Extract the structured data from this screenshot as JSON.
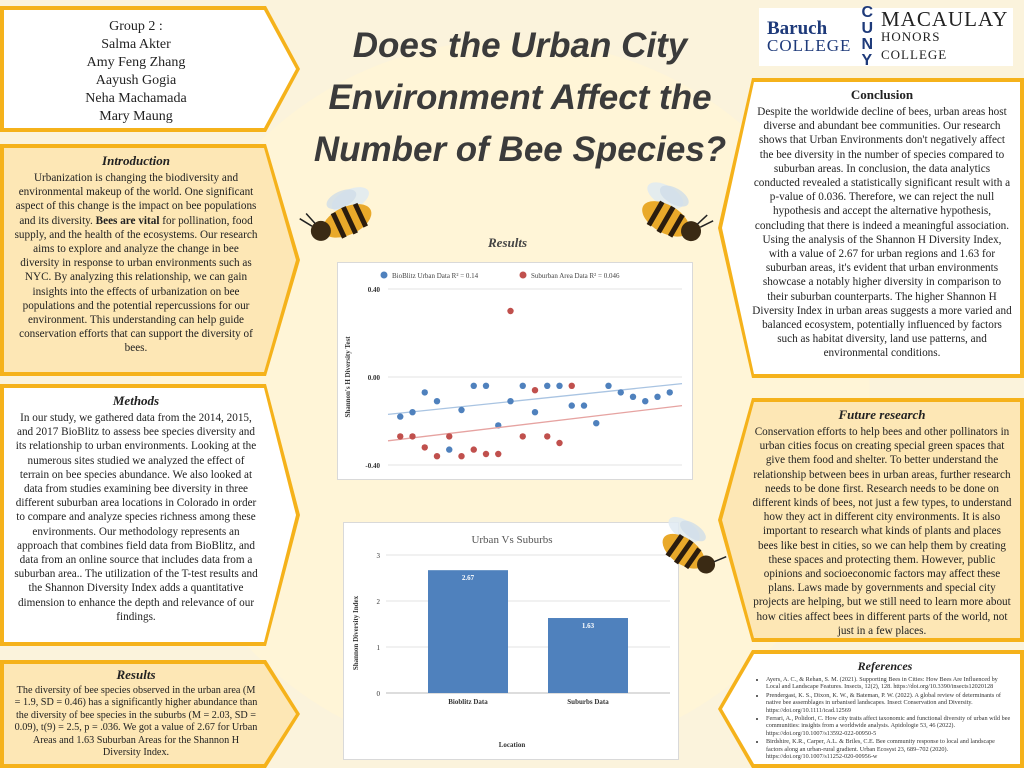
{
  "title": "Does the Urban City Environment Affect the Number of Bee Species?",
  "group": {
    "heading": "Group 2 :",
    "members": [
      "Salma Akter",
      "Amy Feng Zhang",
      "Aayush Gogia",
      "Neha Machamada",
      "Mary Maung"
    ]
  },
  "logo": {
    "baruch_line1": "Baruch",
    "baruch_line2": "COLLEGE",
    "cuny": "CUNY",
    "macaulay_line1": "MACAULAY",
    "macaulay_line2": "HONORS COLLEGE"
  },
  "introduction": {
    "heading": "Introduction",
    "text_before": "Urbanization is changing the biodiversity and environmental makeup of the world. One significant aspect of this change is the impact on bee populations and its diversity. ",
    "text_bold": "Bees are vital",
    "text_after": " for pollination, food supply,  and the health of the ecosystems. Our research aims to explore and analyze the change in bee diversity in response to urban environments such as NYC. By analyzing this relationship, we can gain insights into the effects of urbanization on bee populations and the potential repercussions for our environment. This understanding can help guide conservation efforts that can support the diversity of bees."
  },
  "methods": {
    "heading": "Methods",
    "text": "In our study, we gathered data from the 2014, 2015, and 2017 BioBlitz to assess bee species diversity and its relationship to urban environments. Looking at the numerous sites studied we analyzed the effect of terrain on bee species abundance. We also looked at data from studies examining bee diversity in three different suburban area locations in Colorado in order to compare and analyze species richness among these environments. Our methodology represents an approach that combines field data from BioBlitz, and data from an online source that includes data from a suburban area.. The utilization of the T-test results and the Shannon Diversity Index adds a quantitative dimension to enhance the depth and relevance of our findings."
  },
  "results_text": {
    "heading": "Results",
    "text": "The diversity of bee species observed in the urban area (M =  1.9, SD = 0.46) has a significantly higher abundance than the diversity of bee species in the suburbs (M = 2.03,  SD = 0.09), t(9) = 2.5, p = .036. We got a value of 2.67 for Urban Areas and 1.63 Suburban Areas for the Shannon H Diversity Index."
  },
  "results_label": "Results",
  "conclusion": {
    "heading": "Conclusion",
    "text": "Despite the worldwide decline of bees, urban areas host diverse and abundant bee communities. Our research shows that Urban Environments don't negatively affect the bee diversity in the number of species compared to suburban areas. In conclusion, the data analytics conducted revealed a statistically significant result with a p-value of 0.036. Therefore, we can reject the null hypothesis and accept the alternative hypothesis, concluding that there is indeed a meaningful association. Using the analysis of the Shannon H Diversity Index, with a value of 2.67 for urban regions and 1.63 for suburban areas, it's evident that urban environments showcase a notably higher diversity in comparison to their suburban counterparts. The higher Shannon H Diversity Index in urban areas suggests a more varied and balanced ecosystem, potentially influenced by factors such as habitat diversity, land use patterns, and environmental conditions."
  },
  "future": {
    "heading": "Future research",
    "text": "Conservation efforts to help bees and other pollinators in urban cities focus on creating special green spaces that give them food and shelter. To better understand the relationship between bees in urban areas, further research needs to be done first. Research needs to be done on different kinds of bees, not just a few types, to understand how they act in different city environments. It is also important to research what kinds of plants and places bees like best in cities, so we can help them by creating these spaces and protecting them. However, public opinions and socioeconomic factors may affect these plans. Laws made by governments and special city projects are helping, but we still need to learn more about how cities affect bees in different parts of the world, not just in a few places."
  },
  "references": {
    "heading": "References",
    "items": [
      "Ayers, A. C., & Rehan, S. M. (2021). Supporting Bees in Cities: How Bees Are Influenced by Local and Landscape Features. Insects, 12(2), 128. https://doi.org/10.3390/insects12020128",
      "Prendergast, K. S., Dixon, K. W., & Bateman, P. W. (2022). A global review of determinants of native bee assemblages in urbanised landscapes. Insect Conservation and Diversity. https://doi.org/10.1111/icad.12569",
      "Ferrari, A., Polidori, C. How city traits affect taxonomic and functional diversity of urban wild bee communities: insights from a worldwide analysis. Apidologie 53, 46 (2022). https://doi.org/10.1007/s13592-022-00950-5",
      "Birdshire, K.R., Carper, A.L. & Briles, C.E. Bee community response to local and landscape factors along an urban-rural gradient. Urban Ecosyst 23, 689–702 (2020). https://doi.org/10.1007/s11252-020-00956-w"
    ]
  },
  "chart_data": [
    {
      "type": "scatter",
      "title": "",
      "xlabel": "",
      "ylabel": "Shannon's H Diversity Test",
      "ylim": [
        -0.4,
        0.4
      ],
      "yticks": [
        "0.40",
        "0.00",
        "-0.40"
      ],
      "legend_position": "top",
      "series": [
        {
          "name": "BioBlitz Urban Data R² = 0.14",
          "color": "#4f81bd",
          "points": [
            [
              1,
              -0.18
            ],
            [
              2,
              -0.16
            ],
            [
              3,
              -0.07
            ],
            [
              4,
              -0.11
            ],
            [
              5,
              -0.33
            ],
            [
              6,
              -0.15
            ],
            [
              7,
              -0.04
            ],
            [
              8,
              -0.04
            ],
            [
              9,
              -0.22
            ],
            [
              10,
              -0.11
            ],
            [
              11,
              -0.04
            ],
            [
              12,
              -0.16
            ],
            [
              13,
              -0.04
            ],
            [
              14,
              -0.04
            ],
            [
              15,
              -0.13
            ],
            [
              16,
              -0.13
            ],
            [
              17,
              -0.21
            ],
            [
              18,
              -0.04
            ],
            [
              19,
              -0.07
            ],
            [
              20,
              -0.09
            ],
            [
              21,
              -0.11
            ],
            [
              22,
              -0.09
            ],
            [
              23,
              -0.07
            ]
          ],
          "trend": [
            -0.17,
            -0.03
          ]
        },
        {
          "name": "Suburban Area Data R² = 0.046",
          "color": "#c0504d",
          "points": [
            [
              1,
              -0.27
            ],
            [
              2,
              -0.27
            ],
            [
              3,
              -0.32
            ],
            [
              4,
              -0.36
            ],
            [
              5,
              -0.27
            ],
            [
              6,
              -0.36
            ],
            [
              7,
              -0.33
            ],
            [
              8,
              -0.35
            ],
            [
              9,
              -0.35
            ],
            [
              10,
              0.3
            ],
            [
              11,
              -0.27
            ],
            [
              12,
              -0.06
            ],
            [
              13,
              -0.27
            ],
            [
              14,
              -0.3
            ],
            [
              15,
              -0.04
            ]
          ],
          "trend": [
            -0.29,
            -0.13
          ]
        }
      ]
    },
    {
      "type": "bar",
      "title": "Urban Vs Suburbs",
      "xlabel": "Location",
      "ylabel": "Shannon Diversity Index",
      "ylim": [
        0,
        3
      ],
      "yticks": [
        "0",
        "1",
        "2",
        "3"
      ],
      "categories": [
        "Bioblitz Data",
        "Suburbs Data"
      ],
      "values": [
        2.67,
        1.63
      ],
      "value_labels": [
        "2.67",
        "1.63"
      ],
      "color": "#4f81bd"
    }
  ]
}
